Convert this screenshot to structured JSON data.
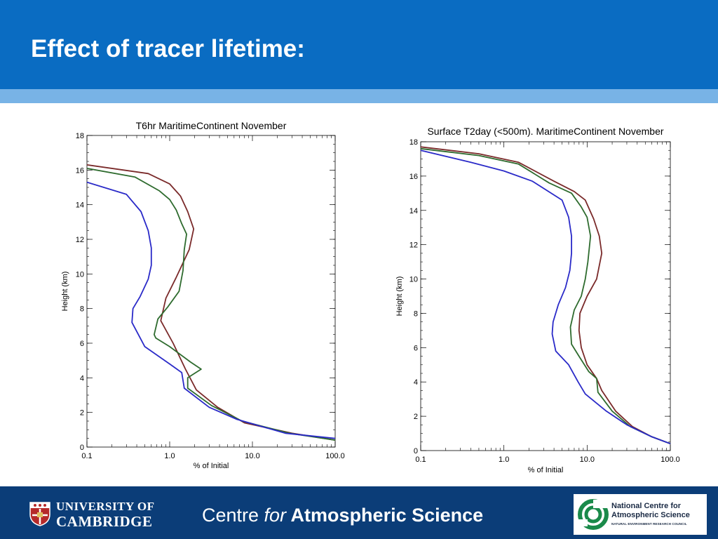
{
  "slide": {
    "title": "Effect of tracer lifetime:"
  },
  "footer": {
    "university_line1": "UNIVERSITY OF",
    "university_line2": "CAMBRIDGE",
    "centre_pre": "Centre ",
    "centre_for": "for",
    "centre_post": " Atmospheric Science",
    "ncas_line1": "National Centre for",
    "ncas_line2": "Atmospheric Science",
    "ncas_line3": "NATURAL ENVIRONMENT RESEARCH COUNCIL"
  },
  "chart_data": [
    {
      "type": "line",
      "title": "T6hr MaritimeContinent November",
      "xlabel": "% of Initial",
      "ylabel": "Height (km)",
      "xscale": "log",
      "xlim": [
        0.1,
        100
      ],
      "ylim": [
        0,
        18
      ],
      "xticks": [
        "0.1",
        "1.0",
        "10.0",
        "100.0"
      ],
      "yticks": [
        "0",
        "2",
        "4",
        "6",
        "8",
        "10",
        "12",
        "14",
        "16",
        "18"
      ],
      "grid": false,
      "series": [
        {
          "color": "#7a2a2a",
          "points": [
            [
              0.1,
              16.3
            ],
            [
              0.55,
              15.8
            ],
            [
              1.0,
              15.2
            ],
            [
              1.35,
              14.5
            ],
            [
              1.65,
              13.6
            ],
            [
              1.95,
              12.6
            ],
            [
              1.72,
              11.4
            ],
            [
              1.2,
              9.8
            ],
            [
              0.9,
              8.6
            ],
            [
              0.78,
              7.3
            ],
            [
              1.1,
              6.0
            ],
            [
              1.55,
              4.5
            ],
            [
              2.1,
              3.3
            ],
            [
              3.8,
              2.3
            ],
            [
              8.0,
              1.4
            ],
            [
              30,
              0.8
            ],
            [
              100,
              0.4
            ]
          ]
        },
        {
          "color": "#2e6b2e",
          "points": [
            [
              0.1,
              16.1
            ],
            [
              0.38,
              15.6
            ],
            [
              0.75,
              14.8
            ],
            [
              1.0,
              14.3
            ],
            [
              1.2,
              13.7
            ],
            [
              1.4,
              12.9
            ],
            [
              1.6,
              12.3
            ],
            [
              1.5,
              11.4
            ],
            [
              1.45,
              10.2
            ],
            [
              1.3,
              9.0
            ],
            [
              0.95,
              8.1
            ],
            [
              0.72,
              7.4
            ],
            [
              0.65,
              6.5
            ],
            [
              0.68,
              6.3
            ],
            [
              1.0,
              5.8
            ],
            [
              1.8,
              4.9
            ],
            [
              2.4,
              4.5
            ],
            [
              1.65,
              4.0
            ],
            [
              1.65,
              3.4
            ],
            [
              3.2,
              2.4
            ],
            [
              7.5,
              1.5
            ],
            [
              28,
              0.8
            ],
            [
              100,
              0.4
            ]
          ]
        },
        {
          "color": "#2a2ac8",
          "points": [
            [
              0.1,
              15.3
            ],
            [
              0.3,
              14.6
            ],
            [
              0.45,
              13.6
            ],
            [
              0.55,
              12.5
            ],
            [
              0.6,
              11.5
            ],
            [
              0.6,
              10.5
            ],
            [
              0.55,
              9.7
            ],
            [
              0.44,
              8.7
            ],
            [
              0.36,
              8.0
            ],
            [
              0.35,
              7.2
            ],
            [
              0.5,
              5.8
            ],
            [
              1.0,
              4.8
            ],
            [
              1.4,
              4.3
            ],
            [
              1.5,
              3.4
            ],
            [
              3.0,
              2.3
            ],
            [
              6.5,
              1.6
            ],
            [
              25,
              0.8
            ],
            [
              100,
              0.5
            ]
          ]
        }
      ]
    },
    {
      "type": "line",
      "title": "Surface T2day (<500m). MaritimeContinent November",
      "xlabel": "% of Initial",
      "ylabel": "Height (km)",
      "xscale": "log",
      "xlim": [
        0.1,
        100
      ],
      "ylim": [
        0,
        18
      ],
      "xticks": [
        "0.1",
        "1.0",
        "10.0",
        "100.0"
      ],
      "yticks": [
        "0",
        "2",
        "4",
        "6",
        "8",
        "10",
        "12",
        "14",
        "16",
        "18"
      ],
      "grid": false,
      "series": [
        {
          "color": "#7a2a2a",
          "points": [
            [
              0.1,
              17.7
            ],
            [
              0.5,
              17.3
            ],
            [
              1.5,
              16.8
            ],
            [
              4.0,
              15.7
            ],
            [
              7.0,
              15.1
            ],
            [
              9.5,
              14.6
            ],
            [
              12,
              13.5
            ],
            [
              14,
              12.5
            ],
            [
              15,
              11.5
            ],
            [
              13,
              10.0
            ],
            [
              10,
              9.0
            ],
            [
              8.2,
              8.0
            ],
            [
              8.0,
              7.0
            ],
            [
              8.5,
              6.0
            ],
            [
              10,
              5.0
            ],
            [
              13,
              4.2
            ],
            [
              15,
              3.5
            ],
            [
              22,
              2.3
            ],
            [
              35,
              1.4
            ],
            [
              60,
              0.8
            ],
            [
              100,
              0.4
            ]
          ]
        },
        {
          "color": "#2e6b2e",
          "points": [
            [
              0.1,
              17.6
            ],
            [
              0.5,
              17.2
            ],
            [
              1.5,
              16.7
            ],
            [
              3.5,
              15.6
            ],
            [
              6.5,
              15.0
            ],
            [
              8.5,
              14.2
            ],
            [
              10,
              13.6
            ],
            [
              11,
              12.5
            ],
            [
              10.2,
              11.0
            ],
            [
              9.5,
              10.0
            ],
            [
              8.5,
              9.0
            ],
            [
              7.0,
              8.2
            ],
            [
              6.3,
              7.2
            ],
            [
              6.5,
              6.2
            ],
            [
              8.0,
              5.5
            ],
            [
              10.5,
              4.6
            ],
            [
              13,
              4.2
            ],
            [
              13.5,
              3.4
            ],
            [
              20,
              2.3
            ],
            [
              33,
              1.4
            ],
            [
              60,
              0.8
            ],
            [
              100,
              0.4
            ]
          ]
        },
        {
          "color": "#2a2ac8",
          "points": [
            [
              0.1,
              17.5
            ],
            [
              0.4,
              16.8
            ],
            [
              1.0,
              16.3
            ],
            [
              2.2,
              15.7
            ],
            [
              5.0,
              14.6
            ],
            [
              6.0,
              13.6
            ],
            [
              6.5,
              12.5
            ],
            [
              6.5,
              11.5
            ],
            [
              6.2,
              10.5
            ],
            [
              5.5,
              9.5
            ],
            [
              4.5,
              8.5
            ],
            [
              3.9,
              7.5
            ],
            [
              3.8,
              6.8
            ],
            [
              4.2,
              5.8
            ],
            [
              6.0,
              5.0
            ],
            [
              7.8,
              4.0
            ],
            [
              9.5,
              3.3
            ],
            [
              17,
              2.3
            ],
            [
              30,
              1.5
            ],
            [
              60,
              0.8
            ],
            [
              100,
              0.4
            ]
          ]
        }
      ]
    }
  ]
}
